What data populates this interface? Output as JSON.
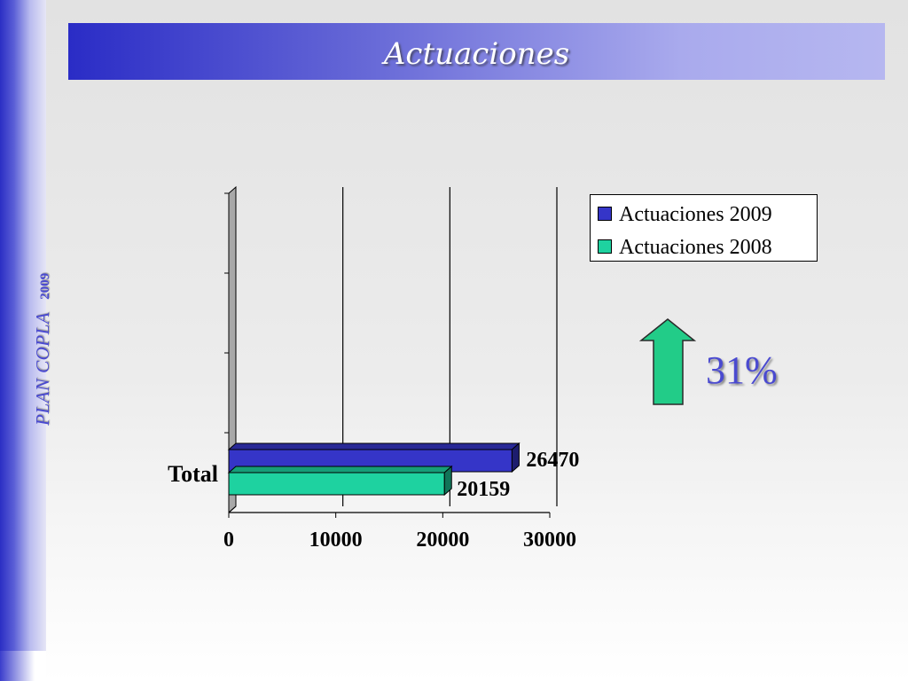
{
  "slide": {
    "title": "Actuaciones",
    "side_text_main": "PLAN COPLA",
    "side_text_year": "2009",
    "change_label": "31%",
    "colors": {
      "accent": "#3333cc",
      "series_2009": "#3535c8",
      "series_2008": "#1ed2a0",
      "arrow": "#22cc88"
    },
    "arrow_icon": "up-arrow-icon"
  },
  "chart_data": {
    "type": "bar",
    "orientation": "horizontal",
    "categories": [
      "Total"
    ],
    "series": [
      {
        "name": "Actuaciones 2009",
        "values": [
          26470
        ],
        "color": "#3535c8"
      },
      {
        "name": "Actuaciones 2008",
        "values": [
          20159
        ],
        "color": "#1ed2a0"
      }
    ],
    "x_ticks": [
      "0",
      "10000",
      "20000",
      "30000"
    ],
    "xlim": [
      0,
      30000
    ],
    "data_labels": [
      "26470",
      "20159"
    ],
    "grid": true,
    "legend_position": "top-right"
  }
}
